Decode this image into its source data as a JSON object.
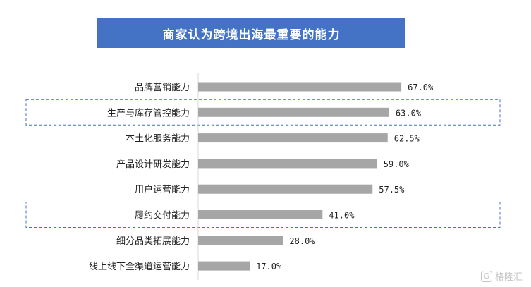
{
  "chart_data": {
    "type": "bar",
    "orientation": "horizontal",
    "title": "商家认为跨境出海最重要的能力",
    "categories": [
      "品牌营销能力",
      "生产与库存管控能力",
      "本土化服务能力",
      "产品设计研发能力",
      "用户运营能力",
      "履约交付能力",
      "细分品类拓展能力",
      "线上线下全渠道运营能力"
    ],
    "values": [
      67.0,
      63.0,
      62.5,
      59.0,
      57.5,
      41.0,
      28.0,
      17.0
    ],
    "value_labels": [
      "67.0%",
      "63.0%",
      "62.5%",
      "59.0%",
      "57.5%",
      "41.0%",
      "28.0%",
      "17.0%"
    ],
    "highlighted_categories": [
      "生产与库存管控能力",
      "履约交付能力"
    ],
    "bar_color": "#a6a6a6",
    "highlight_border_color": "#4472c4",
    "grid": false,
    "legend": "none"
  },
  "title_banner_color": "#4472c4",
  "watermark": {
    "icon": "g-logo-icon",
    "text": "格隆汇"
  }
}
